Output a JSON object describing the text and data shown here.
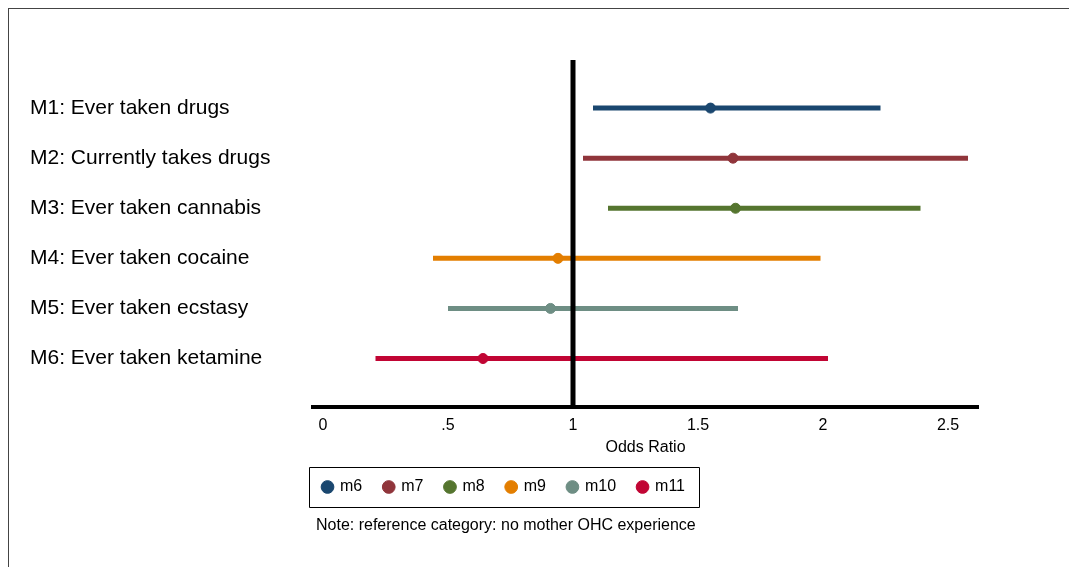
{
  "chart_data": {
    "type": "scatter",
    "orientation": "horizontal",
    "xlabel": "Odds Ratio",
    "categories": [
      "M1: Ever taken drugs",
      "M2: Currently takes drugs",
      "M3: Ever taken cannabis",
      "M4: Ever taken cocaine",
      "M5: Ever taken ecstasy",
      "M6: Ever taken ketamine"
    ],
    "series": [
      {
        "name": "m6",
        "color": "#1a476f",
        "values": [
          1.55,
          null,
          null,
          null,
          null,
          null
        ],
        "errors": [
          [
            1.08,
            2.23
          ],
          null,
          null,
          null,
          null,
          null
        ]
      },
      {
        "name": "m7",
        "color": "#90353b",
        "values": [
          null,
          1.64,
          null,
          null,
          null,
          null
        ],
        "errors": [
          null,
          [
            1.04,
            2.58
          ],
          null,
          null,
          null,
          null
        ]
      },
      {
        "name": "m8",
        "color": "#55752f",
        "values": [
          null,
          null,
          1.65,
          null,
          null,
          null
        ],
        "errors": [
          null,
          null,
          [
            1.14,
            2.39
          ],
          null,
          null,
          null
        ]
      },
      {
        "name": "m9",
        "color": "#e37e00",
        "values": [
          null,
          null,
          null,
          0.94,
          null,
          null
        ],
        "errors": [
          null,
          null,
          null,
          [
            0.44,
            1.99
          ],
          null,
          null
        ]
      },
      {
        "name": "m10",
        "color": "#6e8e84",
        "values": [
          null,
          null,
          null,
          null,
          0.91,
          null
        ],
        "errors": [
          null,
          null,
          null,
          null,
          [
            0.5,
            1.66
          ],
          null
        ]
      },
      {
        "name": "m11",
        "color": "#c10534",
        "values": [
          null,
          null,
          null,
          null,
          null,
          0.64
        ],
        "errors": [
          null,
          null,
          null,
          null,
          null,
          [
            0.21,
            2.02
          ]
        ]
      }
    ],
    "xlim": [
      -0.04,
      2.62
    ],
    "xticks": [
      0,
      {
        "value": 0.5,
        "label": ".5"
      },
      1,
      1.5,
      2,
      2.5
    ],
    "ref_lines": [
      {
        "axis": "x",
        "value": 1,
        "color": "#000000"
      }
    ],
    "marker": "circle",
    "grid": false,
    "legend": "bottom",
    "annotations": [
      "Note: reference category: no mother OHC experience"
    ]
  }
}
